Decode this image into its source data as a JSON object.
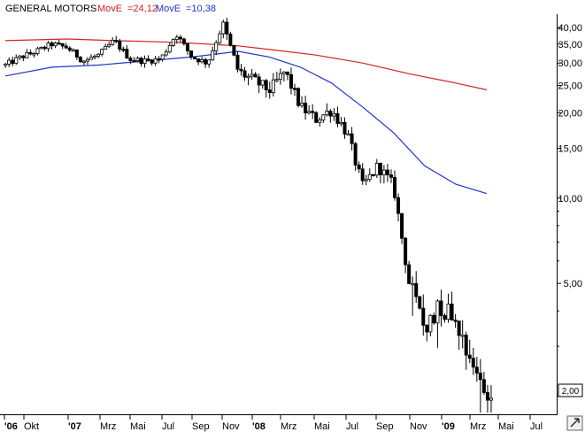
{
  "chart_data": {
    "type": "candlestick",
    "title": "GENERAL MOTORS",
    "indicators": [
      {
        "name": "MovE",
        "value_label": "24,12",
        "color": "#d42020"
      },
      {
        "name": "MovE",
        "value_label": "10,38",
        "color": "#2233cc"
      }
    ],
    "y_scale": "log",
    "ylim": [
      1.75,
      44
    ],
    "y_ticks": [
      {
        "value": 40,
        "label": "40,00"
      },
      {
        "value": 35,
        "label": "35,00"
      },
      {
        "value": 30,
        "label": "30,00"
      },
      {
        "value": 25,
        "label": "25,00"
      },
      {
        "value": 20,
        "label": "20,00"
      },
      {
        "value": 15,
        "label": "15,00"
      },
      {
        "value": 10,
        "label": "10,00"
      },
      {
        "value": 5,
        "label": "5,00"
      },
      {
        "value": 2,
        "label": "2,00"
      }
    ],
    "current_price_label": "2,00",
    "x_axis": [
      "'06",
      "Okt",
      "'07",
      "Mrz",
      "Mai",
      "Jul",
      "Sep",
      "Nov",
      "'08",
      "Mrz",
      "Mai",
      "Jul",
      "Sep",
      "Nov",
      "'09",
      "Mrz",
      "Mai",
      "Jul"
    ],
    "x_bold_labels": [
      "'06",
      "'07",
      "'08",
      "'09"
    ],
    "grid": false,
    "price_path": [
      [
        "2006-08",
        29.5
      ],
      [
        "2006-09",
        31.5
      ],
      [
        "2006-10",
        33
      ],
      [
        "2006-11",
        35
      ],
      [
        "2006-12",
        34
      ],
      [
        "2007-01",
        30.5
      ],
      [
        "2007-02",
        32
      ],
      [
        "2007-03",
        36
      ],
      [
        "2007-04",
        31
      ],
      [
        "2007-05",
        30.5
      ],
      [
        "2007-06",
        31
      ],
      [
        "2007-07",
        38
      ],
      [
        "2007-08",
        31.5
      ],
      [
        "2007-09",
        30
      ],
      [
        "2007-10",
        41
      ],
      [
        "2007-11",
        28
      ],
      [
        "2007-12",
        26
      ],
      [
        "2008-01",
        24
      ],
      [
        "2008-02",
        28
      ],
      [
        "2008-03",
        21
      ],
      [
        "2008-04",
        19
      ],
      [
        "2008-05",
        20.5
      ],
      [
        "2008-06",
        17
      ],
      [
        "2008-07",
        11
      ],
      [
        "2008-08",
        13
      ],
      [
        "2008-09",
        11
      ],
      [
        "2008-10",
        5
      ],
      [
        "2008-11",
        3.5
      ],
      [
        "2008-12",
        4.2
      ],
      [
        "2009-01",
        3.8
      ],
      [
        "2009-02",
        2.7
      ],
      [
        "2009-03",
        2
      ]
    ],
    "moving_average_red": [
      [
        "2006-08",
        36
      ],
      [
        "2006-12",
        36.5
      ],
      [
        "2007-03",
        36
      ],
      [
        "2007-07",
        35.5
      ],
      [
        "2007-11",
        34.5
      ],
      [
        "2008-01",
        33.5
      ],
      [
        "2008-04",
        32
      ],
      [
        "2008-07",
        30
      ],
      [
        "2008-10",
        27.5
      ],
      [
        "2009-01",
        25.5
      ],
      [
        "2009-03",
        24.12
      ]
    ],
    "moving_average_blue": [
      [
        "2006-08",
        27
      ],
      [
        "2006-11",
        29
      ],
      [
        "2007-02",
        29.5
      ],
      [
        "2007-05",
        30.5
      ],
      [
        "2007-08",
        31.5
      ],
      [
        "2007-11",
        33
      ],
      [
        "2008-01",
        31.5
      ],
      [
        "2008-03",
        29
      ],
      [
        "2008-05",
        25.5
      ],
      [
        "2008-07",
        21
      ],
      [
        "2008-09",
        17
      ],
      [
        "2008-11",
        13
      ],
      [
        "2009-01",
        11.2
      ],
      [
        "2009-03",
        10.38
      ]
    ]
  }
}
